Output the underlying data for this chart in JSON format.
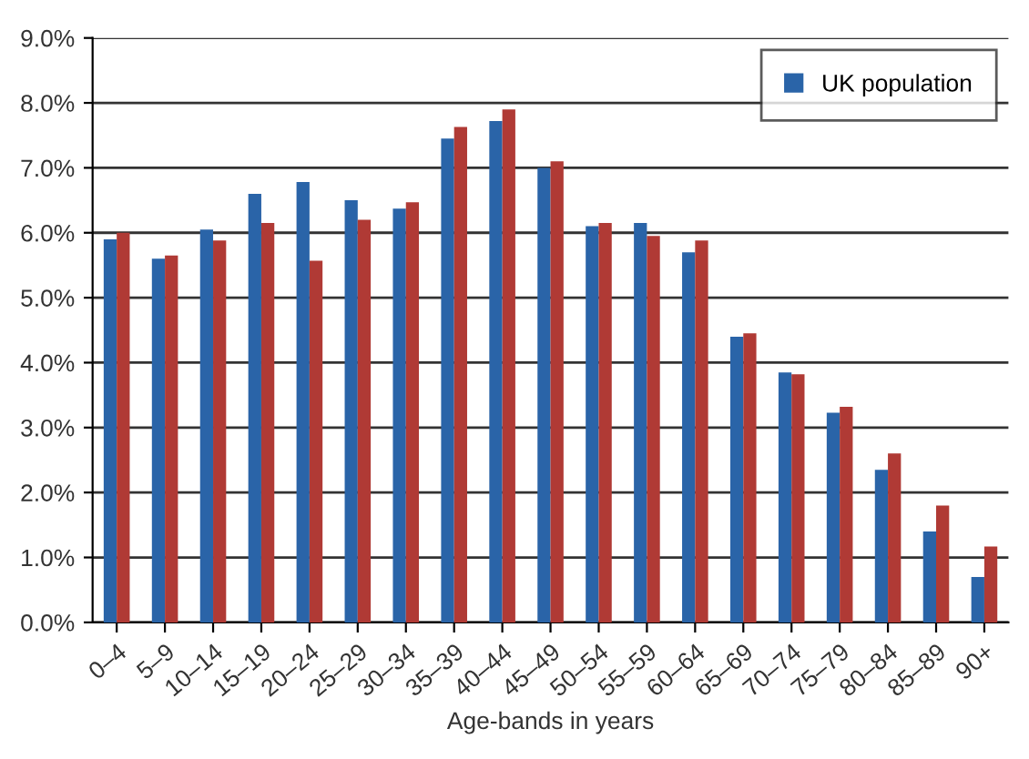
{
  "chart_data": {
    "type": "bar",
    "xlabel": "Age-bands in years",
    "categories": [
      "0–4",
      "5–9",
      "10–14",
      "15–19",
      "20–24",
      "25–29",
      "30–34",
      "35–39",
      "40–44",
      "45–49",
      "50–54",
      "55–59",
      "60–64",
      "65–69",
      "70–74",
      "75–79",
      "80–84",
      "85–89",
      "90+"
    ],
    "series": [
      {
        "name": "UK population",
        "color": "#2a64a8",
        "values": [
          5.9,
          5.6,
          6.05,
          6.6,
          6.78,
          6.5,
          6.37,
          7.45,
          7.72,
          7.0,
          6.1,
          6.15,
          5.7,
          4.4,
          3.85,
          3.23,
          2.35,
          1.4,
          0.7
        ]
      },
      {
        "color": "#b03a35",
        "values": [
          6.0,
          5.65,
          5.88,
          6.15,
          5.57,
          6.2,
          6.47,
          7.63,
          7.9,
          7.1,
          6.15,
          5.95,
          5.88,
          4.45,
          3.82,
          3.32,
          2.6,
          1.8,
          1.17
        ]
      }
    ],
    "ylim": [
      0,
      9
    ],
    "yticks": [
      {
        "value": 0,
        "label": "0.0%"
      },
      {
        "value": 1,
        "label": "1.0%"
      },
      {
        "value": 2,
        "label": "2.0%"
      },
      {
        "value": 3,
        "label": "3.0%"
      },
      {
        "value": 4,
        "label": "4.0%"
      },
      {
        "value": 5,
        "label": "5.0%"
      },
      {
        "value": 6,
        "label": "6.0%"
      },
      {
        "value": 7,
        "label": "7.0%"
      },
      {
        "value": 8,
        "label": "8.0%"
      },
      {
        "value": 9,
        "label": "9.0%"
      }
    ],
    "grid": "y",
    "legend": "top right"
  }
}
